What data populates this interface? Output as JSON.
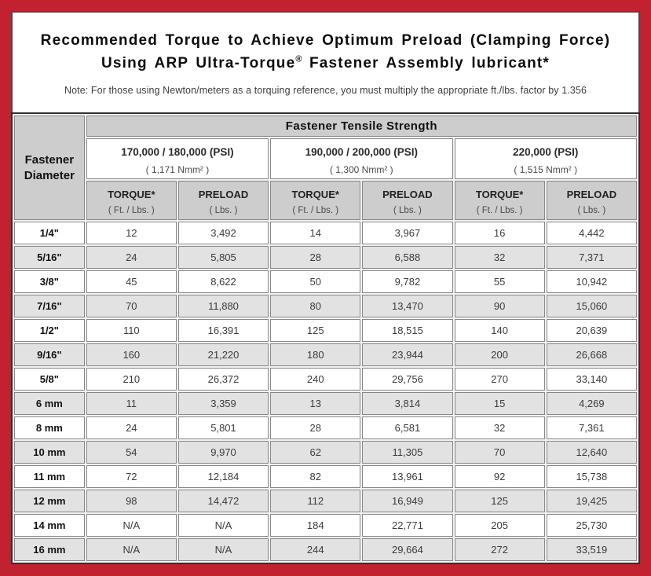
{
  "colors": {
    "frame_red": "#c2212f",
    "panel_border": "#4a4a4a",
    "table_border": "#303030",
    "header_gray": "#cdcdcd",
    "row_alt_gray": "#e2e2e2"
  },
  "header": {
    "title_line1": "Recommended Torque to Achieve Optimum Preload (Clamping Force)",
    "title_line2_pre": "Using ARP Ultra-Torque",
    "title_line2_sup": "®",
    "title_line2_post": " Fastener Assembly lubricant*",
    "note": "Note: For those using Newton/meters as a torquing reference, you must multiply the appropriate ft./lbs. factor by 1.356"
  },
  "table": {
    "corner_line1": "Fastener",
    "corner_line2": "Diameter",
    "top_header": "Fastener Tensile Strength",
    "groups": [
      {
        "psi": "170,000 / 180,000 (PSI)",
        "nmm": "( 1,171 Nmm² )"
      },
      {
        "psi": "190,000 / 200,000 (PSI)",
        "nmm": "( 1,300 Nmm² )"
      },
      {
        "psi": "220,000 (PSI)",
        "nmm": "( 1,515 Nmm² )"
      }
    ],
    "col_headers": [
      {
        "label": "TORQUE*",
        "unit": "( Ft. / Lbs. )"
      },
      {
        "label": "PRELOAD",
        "unit": "( Lbs. )"
      },
      {
        "label": "TORQUE*",
        "unit": "( Ft. / Lbs. )"
      },
      {
        "label": "PRELOAD",
        "unit": "( Lbs. )"
      },
      {
        "label": "TORQUE*",
        "unit": "( Ft. / Lbs. )"
      },
      {
        "label": "PRELOAD",
        "unit": "( Lbs. )"
      }
    ],
    "rows": [
      {
        "diameter": "1/4\"",
        "values": [
          "12",
          "3,492",
          "14",
          "3,967",
          "16",
          "4,442"
        ]
      },
      {
        "diameter": "5/16\"",
        "values": [
          "24",
          "5,805",
          "28",
          "6,588",
          "32",
          "7,371"
        ]
      },
      {
        "diameter": "3/8\"",
        "values": [
          "45",
          "8,622",
          "50",
          "9,782",
          "55",
          "10,942"
        ]
      },
      {
        "diameter": "7/16\"",
        "values": [
          "70",
          "11,880",
          "80",
          "13,470",
          "90",
          "15,060"
        ]
      },
      {
        "diameter": "1/2\"",
        "values": [
          "110",
          "16,391",
          "125",
          "18,515",
          "140",
          "20,639"
        ]
      },
      {
        "diameter": "9/16\"",
        "values": [
          "160",
          "21,220",
          "180",
          "23,944",
          "200",
          "26,668"
        ]
      },
      {
        "diameter": "5/8\"",
        "values": [
          "210",
          "26,372",
          "240",
          "29,756",
          "270",
          "33,140"
        ]
      },
      {
        "diameter": "6 mm",
        "values": [
          "11",
          "3,359",
          "13",
          "3,814",
          "15",
          "4,269"
        ]
      },
      {
        "diameter": "8 mm",
        "values": [
          "24",
          "5,801",
          "28",
          "6,581",
          "32",
          "7,361"
        ]
      },
      {
        "diameter": "10 mm",
        "values": [
          "54",
          "9,970",
          "62",
          "11,305",
          "70",
          "12,640"
        ]
      },
      {
        "diameter": "11 mm",
        "values": [
          "72",
          "12,184",
          "82",
          "13,961",
          "92",
          "15,738"
        ]
      },
      {
        "diameter": "12 mm",
        "values": [
          "98",
          "14,472",
          "112",
          "16,949",
          "125",
          "19,425"
        ]
      },
      {
        "diameter": "14 mm",
        "values": [
          "N/A",
          "N/A",
          "184",
          "22,771",
          "205",
          "25,730"
        ]
      },
      {
        "diameter": "16 mm",
        "values": [
          "N/A",
          "N/A",
          "244",
          "29,664",
          "272",
          "33,519"
        ]
      }
    ]
  }
}
